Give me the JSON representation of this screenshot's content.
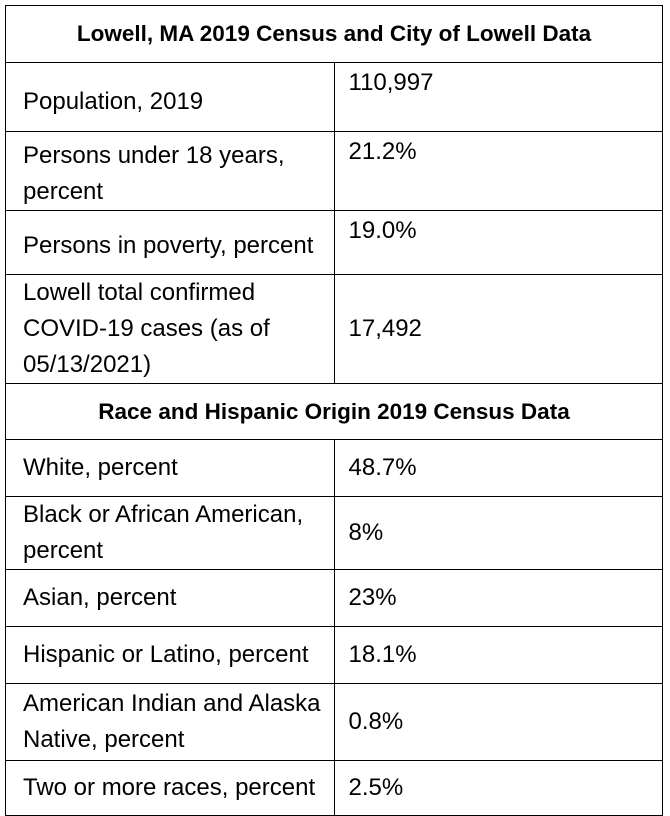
{
  "table": {
    "title": "Lowell, MA 2019 Census and City of Lowell Data",
    "rows": [
      {
        "label": "Population, 2019",
        "value": "110,997"
      },
      {
        "label": "Persons under 18 years, percent",
        "value": "21.2%"
      },
      {
        "label": "Persons in poverty, percent",
        "value": "19.0%"
      },
      {
        "label": "Lowell total confirmed COVID-19 cases (as of 05/13/2021)",
        "value": "17,492"
      }
    ],
    "race_title": "Race and Hispanic Origin 2019 Census Data",
    "race_rows": [
      {
        "label": "White, percent",
        "value": "48.7%"
      },
      {
        "label": "Black or African American, percent",
        "value": "8%"
      },
      {
        "label": "Asian, percent",
        "value": "23%"
      },
      {
        "label": "Hispanic or Latino, percent",
        "value": "18.1%"
      },
      {
        "label": "American Indian and Alaska Native, percent",
        "value": "0.8%"
      },
      {
        "label": "Two or more races, percent",
        "value": "2.5%"
      }
    ]
  }
}
